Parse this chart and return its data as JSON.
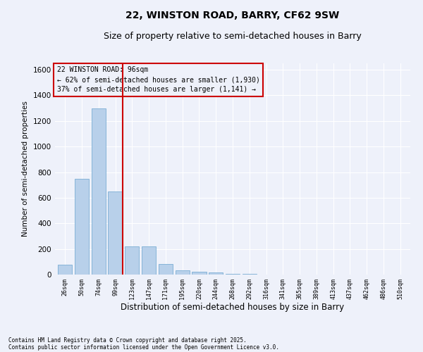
{
  "title1": "22, WINSTON ROAD, BARRY, CF62 9SW",
  "title2": "Size of property relative to semi-detached houses in Barry",
  "xlabel": "Distribution of semi-detached houses by size in Barry",
  "ylabel": "Number of semi-detached properties",
  "categories": [
    "26sqm",
    "50sqm",
    "74sqm",
    "99sqm",
    "123sqm",
    "147sqm",
    "171sqm",
    "195sqm",
    "220sqm",
    "244sqm",
    "268sqm",
    "292sqm",
    "316sqm",
    "341sqm",
    "365sqm",
    "389sqm",
    "413sqm",
    "437sqm",
    "462sqm",
    "486sqm",
    "510sqm"
  ],
  "values": [
    75,
    750,
    1300,
    650,
    220,
    220,
    80,
    35,
    20,
    15,
    8,
    3,
    2,
    1,
    1,
    0,
    0,
    0,
    0,
    0,
    0
  ],
  "bar_color": "#b8d0ea",
  "bar_edge_color": "#7aadd4",
  "vline_color": "#cc0000",
  "vline_x_index": 3,
  "ylim": [
    0,
    1650
  ],
  "yticks": [
    0,
    200,
    400,
    600,
    800,
    1000,
    1200,
    1400,
    1600
  ],
  "annotation_title": "22 WINSTON ROAD: 96sqm",
  "annotation_line1": "← 62% of semi-detached houses are smaller (1,930)",
  "annotation_line2": "37% of semi-detached houses are larger (1,141) →",
  "annotation_box_color": "#cc0000",
  "footnote1": "Contains HM Land Registry data © Crown copyright and database right 2025.",
  "footnote2": "Contains public sector information licensed under the Open Government Licence v3.0.",
  "bg_color": "#eef1fa",
  "grid_color": "#ffffff",
  "title1_fontsize": 10,
  "title2_fontsize": 9,
  "bar_width": 0.85
}
